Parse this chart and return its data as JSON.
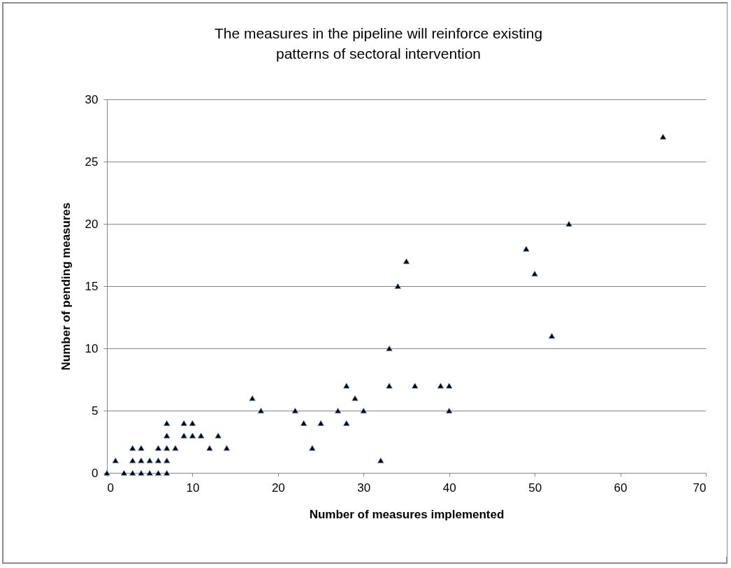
{
  "chart_data": {
    "type": "scatter",
    "title": "The measures in the pipeline will reinforce existing patterns of sectoral intervention",
    "xlabel": "Number of measures implemented",
    "ylabel": "Number of pending measures",
    "x": [
      0,
      1,
      2,
      3,
      3,
      3,
      4,
      4,
      4,
      5,
      5,
      6,
      6,
      6,
      7,
      7,
      7,
      7,
      7,
      8,
      9,
      9,
      10,
      10,
      11,
      12,
      13,
      14,
      17,
      18,
      22,
      23,
      24,
      25,
      27,
      28,
      28,
      29,
      30,
      32,
      33,
      33,
      34,
      35,
      36,
      39,
      40,
      40,
      49,
      50,
      52,
      54,
      65
    ],
    "series": [
      {
        "color": "#000000",
        "values": [
          0,
          1,
          0,
          0,
          1,
          2,
          0,
          1,
          2,
          0,
          1,
          0,
          1,
          2,
          0,
          1,
          2,
          3,
          4,
          2,
          3,
          4,
          3,
          4,
          3,
          2,
          3,
          2,
          6,
          5,
          5,
          4,
          2,
          4,
          5,
          7,
          4,
          6,
          5,
          1,
          10,
          7,
          15,
          17,
          7,
          7,
          7,
          5,
          18,
          16,
          11,
          20,
          27
        ]
      }
    ],
    "xlim": [
      0,
      70
    ],
    "xticks": [
      0,
      10,
      20,
      30,
      40,
      50,
      60,
      70
    ],
    "ylim": [
      0,
      30
    ],
    "yticks": [
      0,
      5,
      10,
      15,
      20,
      25,
      30
    ],
    "grid": "y",
    "marker": "triangle"
  }
}
